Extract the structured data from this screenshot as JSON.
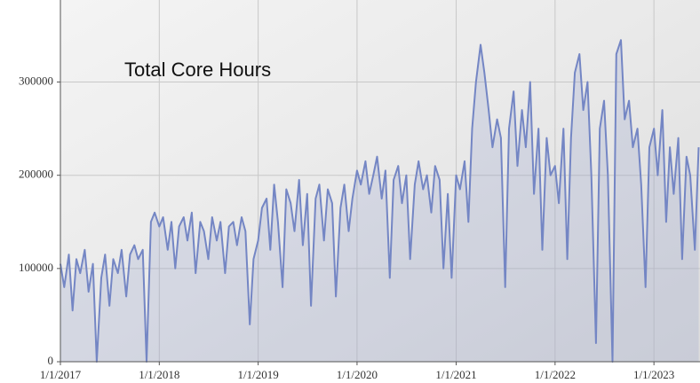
{
  "chart_data": {
    "type": "line",
    "title": "Total Core Hours",
    "color": "#7486c4",
    "x": [
      "1/1/2017",
      "1/15/2017",
      "2/1/2017",
      "2/15/2017",
      "3/1/2017",
      "3/15/2017",
      "4/1/2017",
      "4/15/2017",
      "5/1/2017",
      "5/15/2017",
      "6/1/2017",
      "6/15/2017",
      "7/1/2017",
      "7/15/2017",
      "8/1/2017",
      "8/15/2017",
      "9/1/2017",
      "9/15/2017",
      "10/1/2017",
      "10/15/2017",
      "11/1/2017",
      "11/15/2017",
      "12/1/2017",
      "12/15/2017",
      "1/1/2018",
      "1/15/2018",
      "2/1/2018",
      "2/15/2018",
      "3/1/2018",
      "3/15/2018",
      "4/1/2018",
      "4/15/2018",
      "5/1/2018",
      "5/15/2018",
      "6/1/2018",
      "6/15/2018",
      "7/1/2018",
      "7/15/2018",
      "8/1/2018",
      "8/15/2018",
      "9/1/2018",
      "9/15/2018",
      "10/1/2018",
      "10/15/2018",
      "11/1/2018",
      "11/15/2018",
      "12/1/2018",
      "12/15/2018",
      "1/1/2019",
      "1/15/2019",
      "2/1/2019",
      "2/15/2019",
      "3/1/2019",
      "3/15/2019",
      "4/1/2019",
      "4/15/2019",
      "5/1/2019",
      "5/15/2019",
      "6/1/2019",
      "6/15/2019",
      "7/1/2019",
      "7/15/2019",
      "8/1/2019",
      "8/15/2019",
      "9/1/2019",
      "9/15/2019",
      "10/1/2019",
      "10/15/2019",
      "11/1/2019",
      "11/15/2019",
      "12/1/2019",
      "12/15/2019",
      "1/1/2020",
      "1/15/2020",
      "2/1/2020",
      "2/15/2020",
      "3/1/2020",
      "3/15/2020",
      "4/1/2020",
      "4/15/2020",
      "5/1/2020",
      "5/15/2020",
      "6/1/2020",
      "6/15/2020",
      "7/1/2020",
      "7/15/2020",
      "8/1/2020",
      "8/15/2020",
      "9/1/2020",
      "9/15/2020",
      "10/1/2020",
      "10/15/2020",
      "11/1/2020",
      "11/15/2020",
      "12/1/2020",
      "12/15/2020",
      "1/1/2021",
      "1/15/2021",
      "2/1/2021",
      "2/15/2021",
      "3/1/2021",
      "3/15/2021",
      "4/1/2021",
      "4/15/2021",
      "5/1/2021",
      "5/15/2021",
      "6/1/2021",
      "6/15/2021",
      "7/1/2021",
      "7/15/2021",
      "8/1/2021",
      "8/15/2021",
      "9/1/2021",
      "9/15/2021",
      "10/1/2021",
      "10/15/2021",
      "11/1/2021",
      "11/15/2021",
      "12/1/2021",
      "12/15/2021",
      "1/1/2022",
      "1/15/2022",
      "2/1/2022",
      "2/15/2022",
      "3/1/2022",
      "3/15/2022",
      "4/1/2022",
      "4/15/2022",
      "5/1/2022",
      "5/15/2022",
      "6/1/2022",
      "6/15/2022",
      "7/1/2022",
      "7/15/2022",
      "8/1/2022",
      "8/15/2022",
      "9/1/2022",
      "9/15/2022",
      "10/1/2022",
      "10/15/2022",
      "11/1/2022",
      "11/15/2022",
      "12/1/2022",
      "12/15/2022",
      "1/1/2023",
      "1/15/2023",
      "2/1/2023",
      "2/15/2023",
      "3/1/2023",
      "3/15/2023",
      "4/1/2023",
      "4/15/2023",
      "5/1/2023",
      "5/15/2023",
      "6/1/2023",
      "6/15/2023"
    ],
    "values": [
      105000,
      80000,
      115000,
      55000,
      110000,
      95000,
      120000,
      75000,
      105000,
      0,
      90000,
      115000,
      60000,
      110000,
      95000,
      120000,
      70000,
      115000,
      125000,
      110000,
      120000,
      0,
      150000,
      160000,
      145000,
      155000,
      120000,
      150000,
      100000,
      145000,
      155000,
      130000,
      160000,
      95000,
      150000,
      140000,
      110000,
      155000,
      130000,
      150000,
      95000,
      145000,
      150000,
      125000,
      155000,
      140000,
      40000,
      110000,
      130000,
      165000,
      175000,
      120000,
      190000,
      150000,
      80000,
      185000,
      170000,
      140000,
      195000,
      125000,
      180000,
      60000,
      175000,
      190000,
      130000,
      185000,
      170000,
      70000,
      165000,
      190000,
      140000,
      175000,
      205000,
      190000,
      215000,
      180000,
      200000,
      220000,
      175000,
      205000,
      90000,
      195000,
      210000,
      170000,
      200000,
      110000,
      190000,
      215000,
      185000,
      200000,
      160000,
      210000,
      195000,
      100000,
      180000,
      90000,
      200000,
      185000,
      215000,
      150000,
      250000,
      300000,
      340000,
      310000,
      270000,
      230000,
      260000,
      240000,
      80000,
      250000,
      290000,
      210000,
      270000,
      230000,
      300000,
      180000,
      250000,
      120000,
      240000,
      200000,
      210000,
      170000,
      250000,
      110000,
      240000,
      310000,
      330000,
      270000,
      300000,
      200000,
      20000,
      250000,
      280000,
      200000,
      0,
      330000,
      345000,
      260000,
      280000,
      230000,
      250000,
      190000,
      80000,
      230000,
      250000,
      200000,
      270000,
      150000,
      230000,
      180000,
      240000,
      110000,
      220000,
      200000,
      120000,
      230000
    ],
    "xlim": [
      "1/1/2017",
      "6/20/2023"
    ],
    "xticks": [
      "1/1/2017",
      "1/1/2018",
      "1/1/2019",
      "1/1/2020",
      "1/1/2021",
      "1/1/2022",
      "1/1/2023"
    ],
    "ylim": [
      0,
      388000
    ],
    "yticks": [
      0,
      100000,
      200000,
      300000
    ],
    "grid": true
  }
}
